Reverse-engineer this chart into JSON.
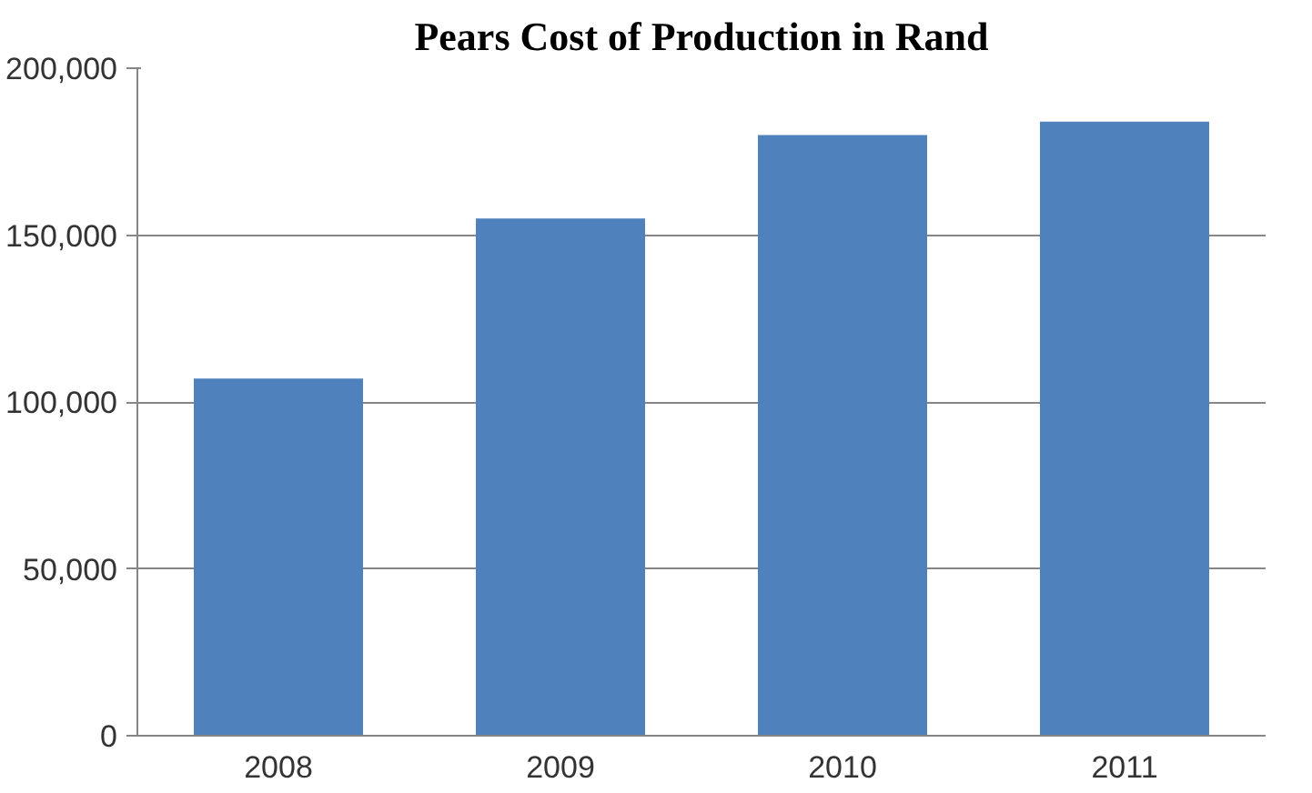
{
  "chart_data": {
    "type": "bar",
    "title": "Pears Cost of Production in Rand",
    "categories": [
      "2008",
      "2009",
      "2010",
      "2011"
    ],
    "values": [
      107000,
      155000,
      180000,
      184000
    ],
    "color": "#4f81bd",
    "ylim": [
      0,
      200000
    ],
    "yticks": [
      {
        "value": 0,
        "label": "0"
      },
      {
        "value": 50000,
        "label": "50,000"
      },
      {
        "value": 100000,
        "label": "100,000"
      },
      {
        "value": 150000,
        "label": "150,000"
      },
      {
        "value": 200000,
        "label": "200,000"
      }
    ],
    "grid": "y"
  }
}
